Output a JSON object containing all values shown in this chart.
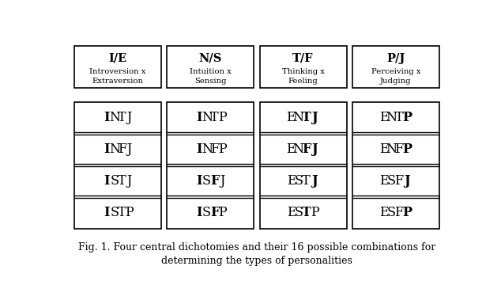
{
  "header_boxes": [
    {
      "title": "I/E",
      "subtitle": "Introversion x\nExtraversion"
    },
    {
      "title": "N/S",
      "subtitle": "Intuition x\nSensing"
    },
    {
      "title": "T/F",
      "subtitle": "Thinking x\nFeeling"
    },
    {
      "title": "P/J",
      "subtitle": "Perceiving x\nJudging"
    }
  ],
  "personality_columns": [
    [
      "INTJ",
      "INFJ",
      "ISTJ",
      "ISTP"
    ],
    [
      "INTP",
      "INFP",
      "ISFJ",
      "ISFP"
    ],
    [
      "ENTJ",
      "ENFJ",
      "ESTJ",
      "ESTP"
    ],
    [
      "ENTP",
      "ENFP",
      "ESFJ",
      "ESFP"
    ]
  ],
  "bold_chars": {
    "INTJ": [
      0
    ],
    "INFJ": [
      0
    ],
    "ISTJ": [
      0
    ],
    "ISTP": [
      0
    ],
    "INTP": [
      0
    ],
    "INFP": [
      0
    ],
    "ISFJ": [
      0,
      2
    ],
    "ISFP": [
      0,
      2
    ],
    "ENTJ": [
      2,
      3
    ],
    "ENFJ": [
      2,
      3
    ],
    "ESTJ": [
      3
    ],
    "ESTP": [
      2
    ],
    "ENTP": [
      3
    ],
    "ENFP": [
      3
    ],
    "ESFJ": [
      3
    ],
    "ESFP": [
      3
    ]
  },
  "caption_line1": "Fig. 1. Four central dichotomies and their 16 possible combinations for",
  "caption_line2": "determining the types of personalities",
  "bg_color": "#ffffff",
  "text_color": "#000000",
  "figsize": [
    6.34,
    3.84
  ],
  "dpi": 100
}
